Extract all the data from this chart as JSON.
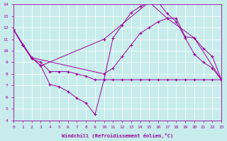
{
  "background_color": "#c8ecec",
  "line_color": "#990099",
  "grid_color": "#ffffff",
  "xlabel": "Windchill (Refroidissement éolien,°C)",
  "xlim": [
    0,
    23
  ],
  "ylim": [
    4,
    14
  ],
  "xticks": [
    0,
    1,
    2,
    3,
    4,
    5,
    6,
    7,
    8,
    9,
    10,
    11,
    12,
    13,
    14,
    15,
    16,
    17,
    18,
    19,
    20,
    21,
    22,
    23
  ],
  "yticks": [
    4,
    5,
    6,
    7,
    8,
    9,
    10,
    11,
    12,
    13,
    14
  ],
  "line1_x": [
    0,
    1,
    2,
    3,
    4,
    5,
    6,
    7,
    8,
    9,
    10,
    11,
    12,
    13,
    14,
    15,
    16,
    17,
    18,
    19,
    20,
    21,
    22,
    23
  ],
  "line1_y": [
    11.8,
    10.5,
    9.4,
    8.7,
    7.1,
    6.9,
    6.5,
    5.9,
    5.5,
    4.5,
    7.5,
    11.1,
    12.2,
    13.3,
    13.8,
    14.2,
    14.2,
    13.2,
    12.5,
    11.1,
    9.7,
    9.0,
    8.5,
    7.5
  ],
  "line2_x": [
    0,
    1,
    2,
    10,
    11,
    12,
    13,
    14,
    15,
    16,
    17,
    18,
    19,
    20,
    21,
    22,
    23
  ],
  "line2_y": [
    11.8,
    10.5,
    9.4,
    8.0,
    8.5,
    9.5,
    10.5,
    11.5,
    12.0,
    12.5,
    12.8,
    12.8,
    11.2,
    11.1,
    10.2,
    9.5,
    7.5
  ],
  "line3_x": [
    0,
    1,
    2,
    3,
    4,
    5,
    6,
    7,
    8,
    9,
    10,
    11,
    12,
    13,
    14,
    15,
    16,
    17,
    18,
    19,
    20,
    21,
    22,
    23
  ],
  "line3_y": [
    11.8,
    10.5,
    9.3,
    9.0,
    8.2,
    8.2,
    8.2,
    8.0,
    7.8,
    7.5,
    7.5,
    7.5,
    7.5,
    7.5,
    7.5,
    7.5,
    7.5,
    7.5,
    7.5,
    7.5,
    7.5,
    7.5,
    7.5,
    7.5
  ],
  "line4_x": [
    0,
    2,
    3,
    10,
    15,
    17,
    20,
    23
  ],
  "line4_y": [
    11.8,
    9.4,
    8.7,
    11.0,
    14.2,
    12.8,
    11.1,
    7.5
  ]
}
